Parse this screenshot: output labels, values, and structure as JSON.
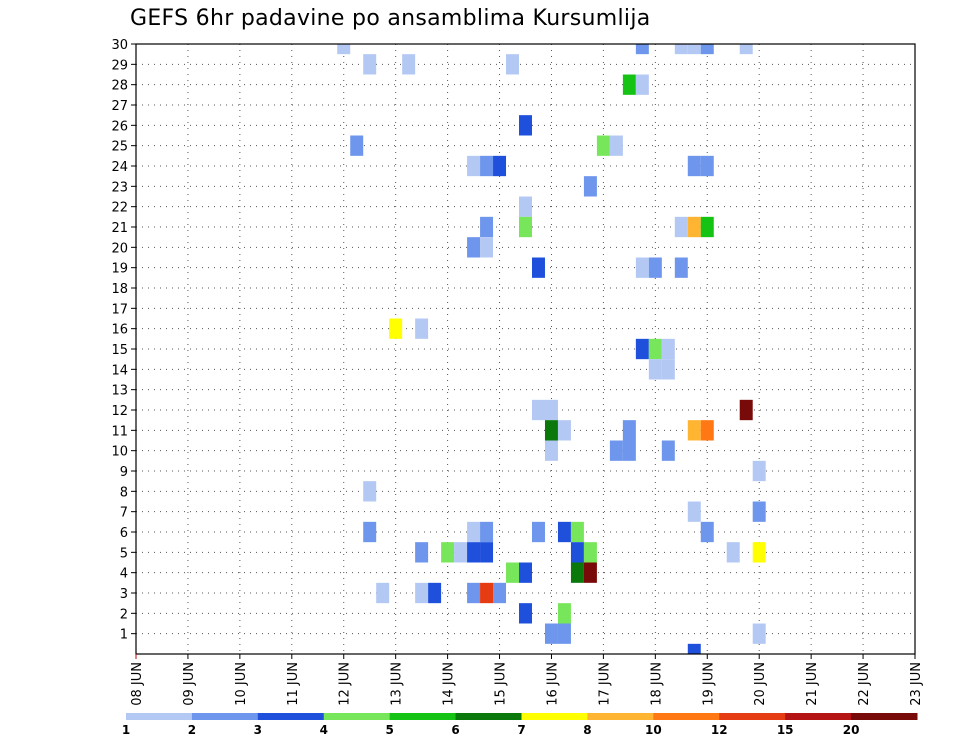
{
  "chart_data": {
    "type": "heatmap",
    "title": "GEFS 6hr padavine po ansamblima Kursumlija",
    "x_tick_labels": [
      "08 JUN",
      "09 JUN",
      "10 JUN",
      "11 JUN",
      "12 JUN",
      "13 JUN",
      "14 JUN",
      "15 JUN",
      "16 JUN",
      "17 JUN",
      "18 JUN",
      "19 JUN",
      "20 JUN",
      "21 JUN",
      "22 JUN",
      "23 JUN"
    ],
    "x_range_days": [
      8,
      23
    ],
    "y_tick_labels": [
      "1",
      "2",
      "3",
      "4",
      "5",
      "6",
      "7",
      "8",
      "9",
      "10",
      "11",
      "12",
      "13",
      "14",
      "15",
      "16",
      "17",
      "18",
      "19",
      "20",
      "21",
      "22",
      "23",
      "24",
      "25",
      "26",
      "27",
      "28",
      "29",
      "30"
    ],
    "y_range": [
      0,
      30
    ],
    "grid": true,
    "colorbar": {
      "tick_labels": [
        "1",
        "2",
        "3",
        "4",
        "5",
        "6",
        "7",
        "8",
        "10",
        "12",
        "15",
        "20"
      ],
      "colors": [
        "#b4c8f4",
        "#6e96ec",
        "#1e50dc",
        "#78e65a",
        "#14c314",
        "#0a780a",
        "#ffff00",
        "#ffb432",
        "#ff7814",
        "#e63c14",
        "#b41414",
        "#780a0a"
      ]
    },
    "cells": [
      {
        "x": 12.0,
        "y": 30,
        "c": 1
      },
      {
        "x": 17.75,
        "y": 30,
        "c": 2
      },
      {
        "x": 18.5,
        "y": 30,
        "c": 1
      },
      {
        "x": 18.75,
        "y": 30,
        "c": 1
      },
      {
        "x": 19.0,
        "y": 30,
        "c": 2
      },
      {
        "x": 19.75,
        "y": 30,
        "c": 1
      },
      {
        "x": 12.5,
        "y": 29,
        "c": 1
      },
      {
        "x": 13.25,
        "y": 29,
        "c": 1
      },
      {
        "x": 15.25,
        "y": 29,
        "c": 1
      },
      {
        "x": 17.5,
        "y": 28,
        "c": 5
      },
      {
        "x": 17.75,
        "y": 28,
        "c": 1
      },
      {
        "x": 15.5,
        "y": 26,
        "c": 3
      },
      {
        "x": 12.25,
        "y": 25,
        "c": 2
      },
      {
        "x": 17.0,
        "y": 25,
        "c": 4
      },
      {
        "x": 17.25,
        "y": 25,
        "c": 1
      },
      {
        "x": 14.5,
        "y": 24,
        "c": 1
      },
      {
        "x": 14.75,
        "y": 24,
        "c": 2
      },
      {
        "x": 15.0,
        "y": 24,
        "c": 3
      },
      {
        "x": 18.75,
        "y": 24,
        "c": 2
      },
      {
        "x": 19.0,
        "y": 24,
        "c": 2
      },
      {
        "x": 16.75,
        "y": 23,
        "c": 2
      },
      {
        "x": 15.5,
        "y": 22,
        "c": 1
      },
      {
        "x": 14.75,
        "y": 21,
        "c": 2
      },
      {
        "x": 15.5,
        "y": 21,
        "c": 4
      },
      {
        "x": 18.5,
        "y": 21,
        "c": 1
      },
      {
        "x": 18.75,
        "y": 21,
        "c": 8
      },
      {
        "x": 19.0,
        "y": 21,
        "c": 5
      },
      {
        "x": 14.5,
        "y": 20,
        "c": 2
      },
      {
        "x": 14.75,
        "y": 20,
        "c": 1
      },
      {
        "x": 15.75,
        "y": 19,
        "c": 3
      },
      {
        "x": 17.75,
        "y": 19,
        "c": 1
      },
      {
        "x": 18.0,
        "y": 19,
        "c": 2
      },
      {
        "x": 18.5,
        "y": 19,
        "c": 2
      },
      {
        "x": 13.0,
        "y": 16,
        "c": 7
      },
      {
        "x": 13.5,
        "y": 16,
        "c": 1
      },
      {
        "x": 17.75,
        "y": 15,
        "c": 3
      },
      {
        "x": 18.0,
        "y": 15,
        "c": 4
      },
      {
        "x": 18.25,
        "y": 15,
        "c": 1
      },
      {
        "x": 18.0,
        "y": 14,
        "c": 1
      },
      {
        "x": 18.25,
        "y": 14,
        "c": 1
      },
      {
        "x": 15.75,
        "y": 12,
        "c": 1
      },
      {
        "x": 16.0,
        "y": 12,
        "c": 1
      },
      {
        "x": 19.75,
        "y": 12,
        "c": 12
      },
      {
        "x": 16.0,
        "y": 11,
        "c": 6
      },
      {
        "x": 16.25,
        "y": 11,
        "c": 1
      },
      {
        "x": 18.75,
        "y": 11,
        "c": 8
      },
      {
        "x": 19.0,
        "y": 11,
        "c": 9
      },
      {
        "x": 17.5,
        "y": 11,
        "c": 2
      },
      {
        "x": 16.0,
        "y": 10,
        "c": 1
      },
      {
        "x": 17.25,
        "y": 10,
        "c": 2
      },
      {
        "x": 17.5,
        "y": 10,
        "c": 2
      },
      {
        "x": 18.25,
        "y": 10,
        "c": 2
      },
      {
        "x": 20.0,
        "y": 9,
        "c": 1
      },
      {
        "x": 12.5,
        "y": 8,
        "c": 1
      },
      {
        "x": 18.75,
        "y": 7,
        "c": 1
      },
      {
        "x": 20.0,
        "y": 7,
        "c": 2
      },
      {
        "x": 12.5,
        "y": 6,
        "c": 2
      },
      {
        "x": 14.5,
        "y": 6,
        "c": 1
      },
      {
        "x": 14.75,
        "y": 6,
        "c": 2
      },
      {
        "x": 15.75,
        "y": 6,
        "c": 2
      },
      {
        "x": 16.25,
        "y": 6,
        "c": 3
      },
      {
        "x": 16.5,
        "y": 6,
        "c": 4
      },
      {
        "x": 19.0,
        "y": 6,
        "c": 2
      },
      {
        "x": 13.5,
        "y": 5,
        "c": 2
      },
      {
        "x": 14.0,
        "y": 5,
        "c": 4
      },
      {
        "x": 14.25,
        "y": 5,
        "c": 1
      },
      {
        "x": 14.5,
        "y": 5,
        "c": 3
      },
      {
        "x": 14.75,
        "y": 5,
        "c": 3
      },
      {
        "x": 16.5,
        "y": 5,
        "c": 3
      },
      {
        "x": 16.75,
        "y": 5,
        "c": 4
      },
      {
        "x": 19.5,
        "y": 5,
        "c": 1
      },
      {
        "x": 20.0,
        "y": 5,
        "c": 7
      },
      {
        "x": 15.25,
        "y": 4,
        "c": 4
      },
      {
        "x": 15.5,
        "y": 4,
        "c": 3
      },
      {
        "x": 16.5,
        "y": 4,
        "c": 6
      },
      {
        "x": 16.75,
        "y": 4,
        "c": 12
      },
      {
        "x": 12.75,
        "y": 3,
        "c": 1
      },
      {
        "x": 13.5,
        "y": 3,
        "c": 1
      },
      {
        "x": 13.75,
        "y": 3,
        "c": 3
      },
      {
        "x": 14.5,
        "y": 3,
        "c": 2
      },
      {
        "x": 14.75,
        "y": 3,
        "c": 10
      },
      {
        "x": 15.0,
        "y": 3,
        "c": 2
      },
      {
        "x": 15.5,
        "y": 2,
        "c": 3
      },
      {
        "x": 16.25,
        "y": 2,
        "c": 4
      },
      {
        "x": 16.0,
        "y": 1,
        "c": 2
      },
      {
        "x": 16.25,
        "y": 1,
        "c": 2
      },
      {
        "x": 20.0,
        "y": 1,
        "c": 1
      },
      {
        "x": 18.75,
        "y": 0,
        "c": 3
      }
    ]
  }
}
